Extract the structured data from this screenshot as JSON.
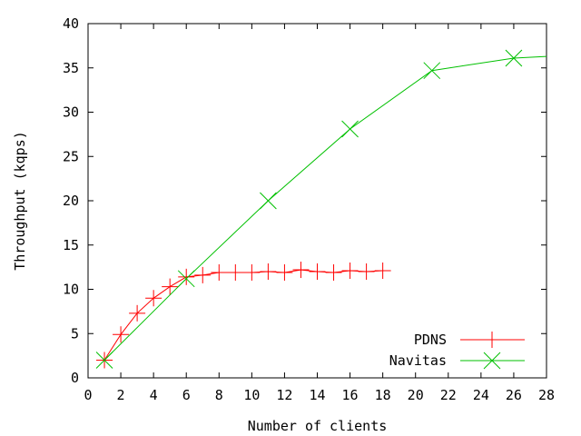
{
  "chart_data": {
    "type": "line",
    "title": "",
    "xlabel": "Number of clients",
    "ylabel": "Throughput (kqps)",
    "xlim": [
      0,
      28
    ],
    "ylim": [
      0,
      40
    ],
    "xticks": [
      0,
      2,
      4,
      6,
      8,
      10,
      12,
      14,
      16,
      18,
      20,
      22,
      24,
      26,
      28
    ],
    "yticks": [
      0,
      5,
      10,
      15,
      20,
      25,
      30,
      35,
      40
    ],
    "grid": false,
    "legend_position": "bottom-right",
    "series": [
      {
        "name": "PDNS",
        "color": "#ff0000",
        "marker": "plus",
        "x": [
          1,
          2,
          3,
          4,
          5,
          6,
          7,
          8,
          9,
          10,
          11,
          12,
          13,
          14,
          15,
          16,
          17,
          18
        ],
        "y": [
          2.0,
          4.9,
          7.3,
          9.0,
          10.3,
          11.4,
          11.6,
          11.9,
          11.9,
          11.9,
          12.0,
          11.9,
          12.2,
          12.0,
          11.9,
          12.1,
          12.0,
          12.1
        ]
      },
      {
        "name": "Navitas",
        "color": "#00c000",
        "marker": "cross",
        "x": [
          1,
          6,
          11,
          16,
          21,
          26,
          28
        ],
        "y": [
          2.0,
          11.2,
          20.0,
          28.1,
          34.7,
          36.1,
          36.3
        ],
        "marker_x": [
          1,
          6,
          11,
          16,
          21,
          26
        ]
      }
    ]
  }
}
